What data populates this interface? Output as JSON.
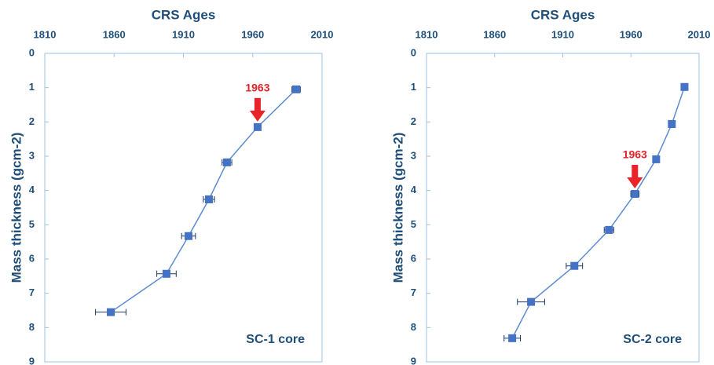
{
  "chart_data": [
    {
      "type": "line",
      "title": "CRS Ages",
      "y_label": "Mass thickness (gcm-2)",
      "core_label": "SC-1 core",
      "annotation": "1963",
      "xlim": [
        1810,
        2010
      ],
      "xticks": [
        1810,
        1860,
        1910,
        1960,
        2010
      ],
      "ylim": [
        0,
        9
      ],
      "yticks": [
        0,
        1,
        2,
        3,
        4,
        5,
        6,
        7,
        8,
        9
      ],
      "y_inverted": true,
      "x_axis_top": true,
      "series": [
        {
          "color": "#4472c4",
          "x": [
            1991.3,
            1963.5,
            1941.4,
            1928.4,
            1913.7,
            1897.8,
            1857.6
          ],
          "values": [
            1.05,
            2.15,
            3.18,
            4.26,
            5.33,
            6.43,
            7.55
          ],
          "errors": [
            3,
            0,
            3.5,
            4,
            5,
            7,
            11
          ]
        }
      ]
    },
    {
      "type": "line",
      "title": "CRS Ages",
      "y_label": "Mass thickness (gcm-2)",
      "core_label": "SC-2 core",
      "annotation": "1963",
      "xlim": [
        1810,
        2010
      ],
      "xticks": [
        1810,
        1860,
        1910,
        1960,
        2010
      ],
      "ylim": [
        0,
        9
      ],
      "yticks": [
        0,
        1,
        2,
        3,
        4,
        5,
        6,
        7,
        8,
        9
      ],
      "y_inverted": true,
      "x_axis_top": true,
      "series": [
        {
          "color": "#4472c4",
          "x": [
            1999.3,
            1990,
            1978.5,
            1962.9,
            1943.9,
            1918.5,
            1886.7,
            1872.9
          ],
          "values": [
            0.98,
            2.06,
            3.09,
            4.1,
            5.15,
            6.2,
            7.25,
            8.31
          ],
          "errors": [
            0,
            0,
            2.3,
            3,
            3.5,
            6,
            10,
            6
          ]
        }
      ]
    }
  ]
}
